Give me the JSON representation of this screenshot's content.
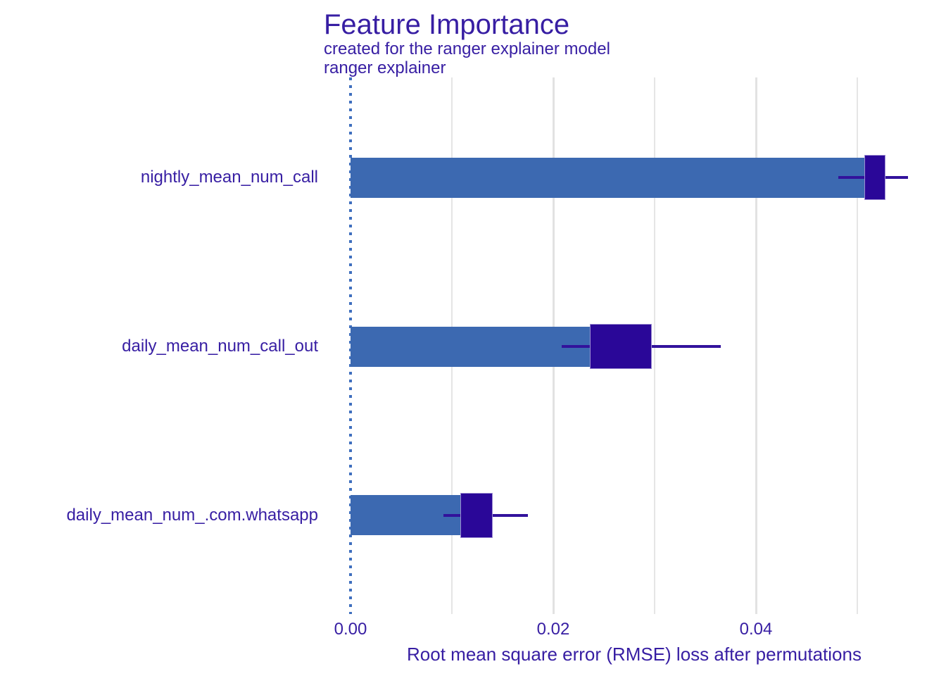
{
  "colors": {
    "text": "#371ea3",
    "bar_fill": "#3c69b1",
    "box_fill": "#2a0798",
    "whisker": "#32129c",
    "gridline_major": "#e2e2e2",
    "gridline_minor": "#e5e5e5",
    "vline_dotted": "#3f6fbe",
    "background": "#ffffff"
  },
  "chart_data": {
    "type": "bar",
    "orientation": "horizontal",
    "title": "Feature Importance",
    "subtitle": "created for the ranger explainer model",
    "facet_label": "ranger explainer",
    "xlabel": "Root mean square error (RMSE) loss after permutations",
    "ylabel": "",
    "xlim": [
      -0.0028,
      0.0588
    ],
    "grid": true,
    "legend": "none",
    "baseline_vline": 0,
    "categories": [
      "nightly_mean_num_call",
      "daily_mean_num_call_out",
      "daily_mean_num_.com.whatsapp"
    ],
    "series": [
      {
        "name": "RMSE loss after permutations (bar length)",
        "values": [
          0.0517,
          0.0267,
          0.0124
        ]
      }
    ],
    "boxplots": [
      {
        "q1": 0.0507,
        "q3": 0.0528,
        "whisker_low": 0.0481,
        "whisker_high": 0.055
      },
      {
        "q1": 0.0236,
        "q3": 0.0297,
        "whisker_low": 0.0208,
        "whisker_high": 0.0365
      },
      {
        "q1": 0.0108,
        "q3": 0.014,
        "whisker_low": 0.0092,
        "whisker_high": 0.0175
      }
    ],
    "x_ticks": [
      {
        "value": 0.0,
        "label": "0.00"
      },
      {
        "value": 0.02,
        "label": "0.02"
      },
      {
        "value": 0.04,
        "label": "0.04"
      }
    ],
    "x_major_gridlines": [
      0.02,
      0.04
    ],
    "x_minor_gridlines": [
      0.01,
      0.03,
      0.05
    ]
  }
}
